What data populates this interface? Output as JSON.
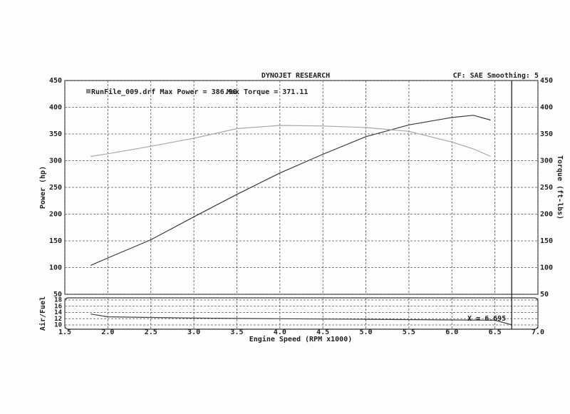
{
  "chart_data": [
    {
      "type": "line",
      "title": "DYNOJET RESEARCH",
      "subtitle": "CF: SAE  Smoothing: 5",
      "legend": [
        "RunFile_009.drf Max Power = 386.90",
        "Max Torque = 371.11"
      ],
      "x_label": "Engine Speed (RPM x1000)",
      "y_label": "Power (hp)",
      "y2_label": "Torque (ft-lbs)",
      "xlim": [
        1.5,
        7
      ],
      "xticks": [
        1.5,
        {
          "value": 2,
          "label": "2.0"
        },
        2.5,
        {
          "value": 3,
          "label": "3.0"
        },
        3.5,
        {
          "value": 4,
          "label": "4.0"
        },
        4.5,
        {
          "value": 5,
          "label": "5.0"
        },
        5.5,
        {
          "value": 6,
          "label": "6.0"
        },
        6.5,
        {
          "value": 7,
          "label": "7.0"
        }
      ],
      "ylim": [
        50,
        450
      ],
      "yticks": [
        50,
        100,
        150,
        200,
        250,
        300,
        350,
        400,
        450
      ],
      "y2lim": [
        50,
        450
      ],
      "y2ticks": [
        50,
        100,
        150,
        200,
        250,
        300,
        350,
        400,
        450
      ],
      "grid": true,
      "cursor": {
        "value": 6.695,
        "label": "X = 6.695"
      },
      "x": [
        1.8,
        2,
        2.5,
        3,
        3.5,
        4,
        4.5,
        5,
        5.5,
        6,
        6.25,
        6.45
      ],
      "series": [
        {
          "color": "#3a3a3a",
          "values": [
            104,
            118,
            152,
            195,
            237,
            277,
            312,
            345,
            367,
            381,
            385,
            376
          ]
        },
        {
          "color": "#a8a8a8",
          "axis": "y2",
          "values": [
            308,
            313,
            327,
            342,
            360,
            366,
            365,
            362,
            355,
            335,
            322,
            308
          ]
        }
      ]
    },
    {
      "type": "line",
      "y_label": "Air/Fuel",
      "ylim": [
        10,
        18
      ],
      "yticks": [
        10,
        12,
        14,
        16,
        18
      ],
      "grid": true,
      "x": [
        1.8,
        2,
        3,
        4,
        5,
        6,
        6.5,
        6.7
      ],
      "series": [
        {
          "color": "#444444",
          "values": [
            13.5,
            12.6,
            12.2,
            12,
            11.8,
            11.6,
            11.5,
            10
          ]
        }
      ]
    }
  ]
}
